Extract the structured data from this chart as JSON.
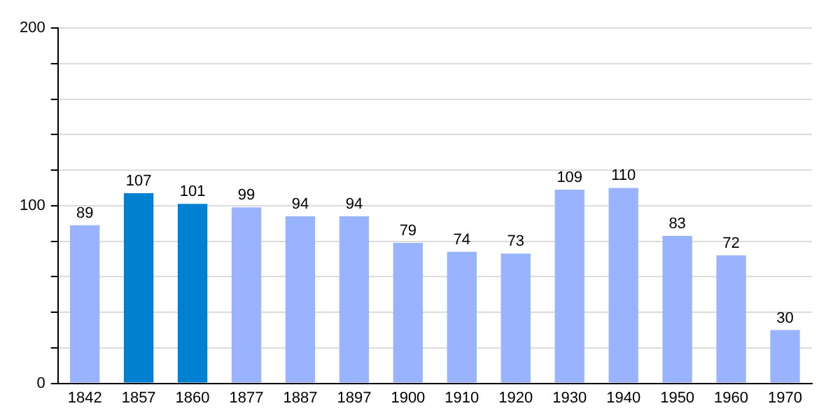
{
  "chart_data": {
    "type": "bar",
    "categories": [
      "1842",
      "1857",
      "1860",
      "1877",
      "1887",
      "1897",
      "1900",
      "1910",
      "1920",
      "1930",
      "1940",
      "1950",
      "1960",
      "1970"
    ],
    "values": [
      89,
      107,
      101,
      99,
      94,
      94,
      79,
      74,
      73,
      109,
      110,
      83,
      72,
      30
    ],
    "colors": [
      "#99b3ff",
      "#0080d0",
      "#0080d0",
      "#99b3ff",
      "#99b3ff",
      "#99b3ff",
      "#99b3ff",
      "#99b3ff",
      "#99b3ff",
      "#99b3ff",
      "#99b3ff",
      "#99b3ff",
      "#99b3ff",
      "#99b3ff"
    ],
    "ylim": [
      0,
      200
    ],
    "yticks": [
      0,
      {
        "value": 20,
        "label": null
      },
      {
        "value": 40,
        "label": null
      },
      {
        "value": 60,
        "label": null
      },
      {
        "value": 80,
        "label": null
      },
      100,
      {
        "value": 120,
        "label": null
      },
      {
        "value": 140,
        "label": null
      },
      {
        "value": 160,
        "label": null
      },
      {
        "value": 180,
        "label": null
      },
      200
    ],
    "grid": "y",
    "data_labels": true
  }
}
